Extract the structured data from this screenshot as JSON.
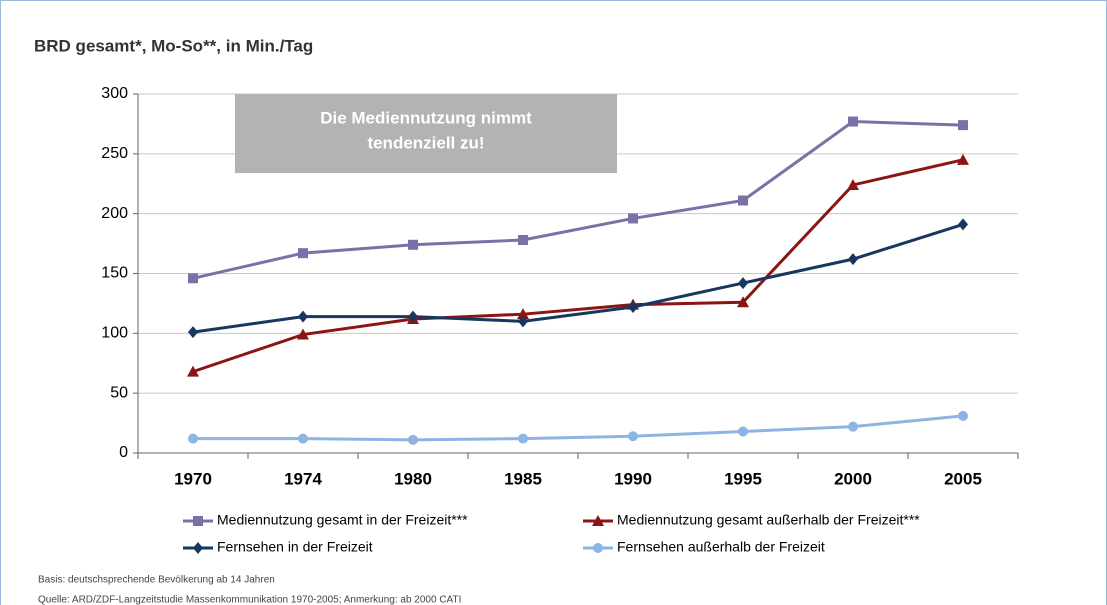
{
  "chart_data": {
    "type": "line",
    "title": "BRD gesamt*, Mo-So**, in Min./Tag",
    "annotation": [
      "Die Mediennutzung nimmt",
      "tendenziell zu!"
    ],
    "categories": [
      "1970",
      "1974",
      "1980",
      "1985",
      "1990",
      "1995",
      "2000",
      "2005"
    ],
    "series": [
      {
        "name": "Mediennutzung gesamt in der Freizeit***",
        "color": "#7b70a8",
        "marker": "square",
        "values": [
          146,
          167,
          174,
          178,
          196,
          211,
          277,
          274
        ]
      },
      {
        "name": "Mediennutzung gesamt außerhalb der Freizeit***",
        "color": "#8b1515",
        "marker": "triangle",
        "values": [
          68,
          99,
          112,
          116,
          124,
          126,
          224,
          245
        ]
      },
      {
        "name": "Fernsehen in der Freizeit",
        "color": "#17375e",
        "marker": "diamond",
        "values": [
          101,
          114,
          114,
          110,
          122,
          142,
          162,
          191
        ]
      },
      {
        "name": "Fernsehen außerhalb der Freizeit",
        "color": "#8db4e2",
        "marker": "circle",
        "values": [
          12,
          12,
          11,
          12,
          14,
          18,
          22,
          31
        ]
      }
    ],
    "ylim": [
      0,
      300
    ],
    "yticks": [
      0,
      50,
      100,
      150,
      200,
      250,
      300
    ],
    "grid": true,
    "footnotes": [
      "Basis: deutschsprechende Bevölkerung ab 14 Jahren",
      "Quelle: ARD/ZDF-Langzeitstudie Massenkommunikation 1970-2005; Anmerkung: ab 2000 CATI"
    ]
  }
}
